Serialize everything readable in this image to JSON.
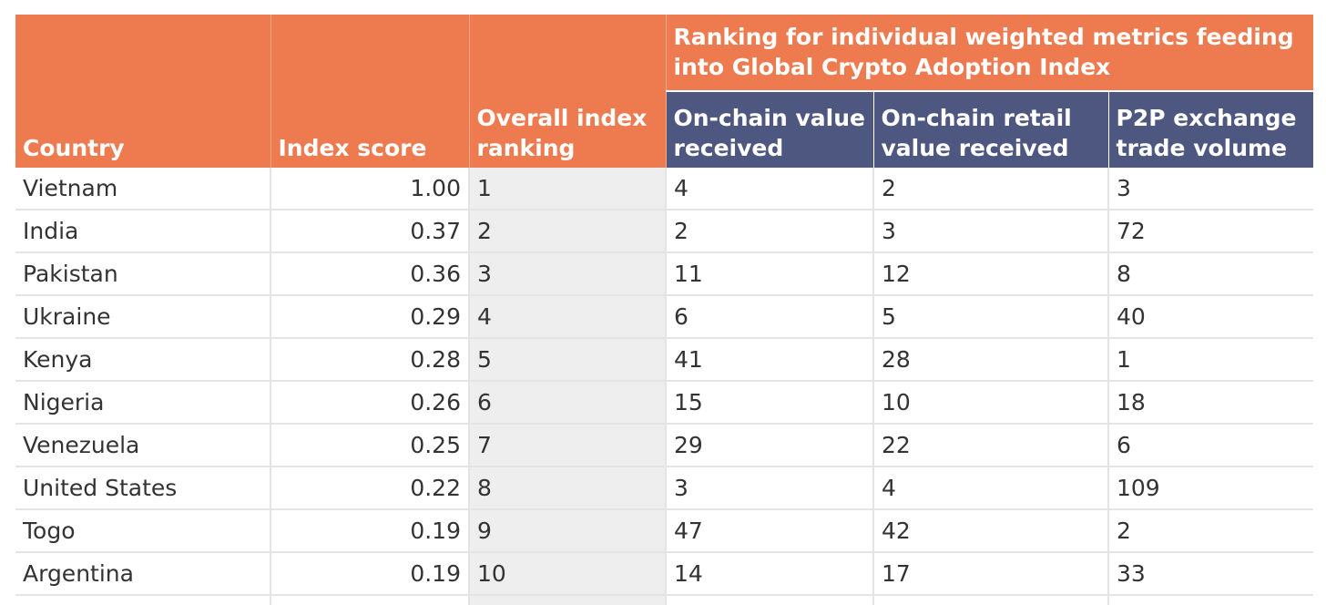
{
  "header": {
    "country": "Country",
    "index_score": "Index score",
    "overall_ranking": "Overall index ranking",
    "group_title": "Ranking for individual weighted metrics feeding into Global Crypto Adoption Index",
    "onchain_value": "On-chain value received",
    "onchain_retail": "On-chain retail value received",
    "p2p_volume": "P2P exchange trade volume"
  },
  "rows": [
    {
      "country": "Vietnam",
      "score": "1.00",
      "rank": "1",
      "onchain": "4",
      "retail": "2",
      "p2p": "3"
    },
    {
      "country": "India",
      "score": "0.37",
      "rank": "2",
      "onchain": "2",
      "retail": "3",
      "p2p": "72"
    },
    {
      "country": "Pakistan",
      "score": "0.36",
      "rank": "3",
      "onchain": "11",
      "retail": "12",
      "p2p": "8"
    },
    {
      "country": "Ukraine",
      "score": "0.29",
      "rank": "4",
      "onchain": "6",
      "retail": "5",
      "p2p": "40"
    },
    {
      "country": "Kenya",
      "score": "0.28",
      "rank": "5",
      "onchain": "41",
      "retail": "28",
      "p2p": "1"
    },
    {
      "country": "Nigeria",
      "score": "0.26",
      "rank": "6",
      "onchain": "15",
      "retail": "10",
      "p2p": "18"
    },
    {
      "country": "Venezuela",
      "score": "0.25",
      "rank": "7",
      "onchain": "29",
      "retail": "22",
      "p2p": "6"
    },
    {
      "country": "United States",
      "score": "0.22",
      "rank": "8",
      "onchain": "3",
      "retail": "4",
      "p2p": "109"
    },
    {
      "country": "Togo",
      "score": "0.19",
      "rank": "9",
      "onchain": "47",
      "retail": "42",
      "p2p": "2"
    },
    {
      "country": "Argentina",
      "score": "0.19",
      "rank": "10",
      "onchain": "14",
      "retail": "17",
      "p2p": "33"
    }
  ],
  "colors": {
    "header_orange": "#ee7a4f",
    "header_navy": "#4e5780",
    "rank_column_bg": "#eeeeee",
    "grid_line": "#e4e4e4"
  }
}
